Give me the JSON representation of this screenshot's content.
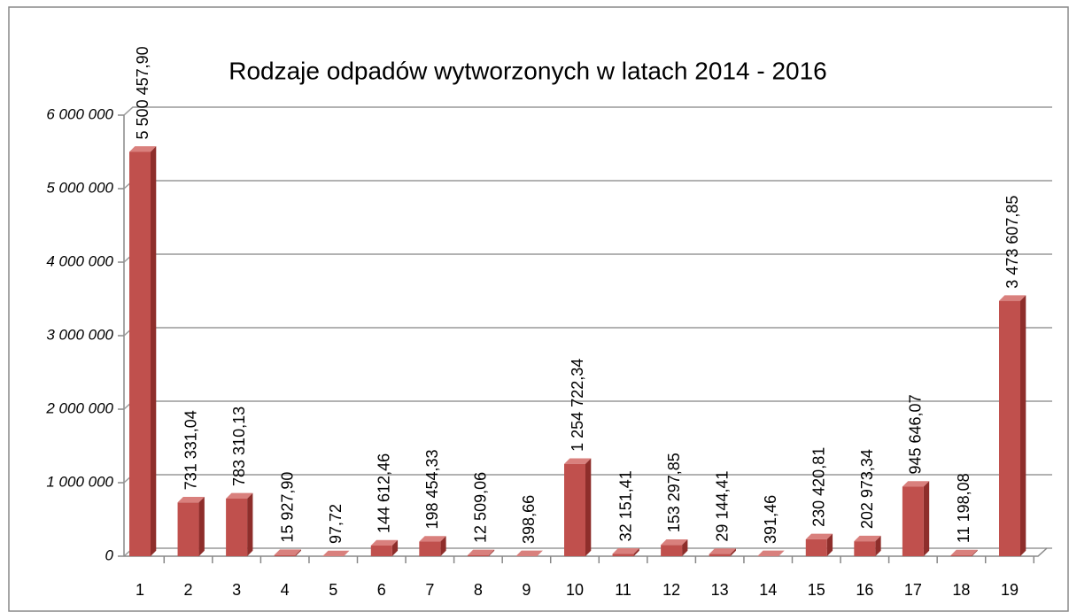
{
  "chart_data": {
    "type": "bar",
    "title": "Rodzaje odpadów wytworzonych w latach  2014 - 2016",
    "categories": [
      "1",
      "2",
      "3",
      "4",
      "5",
      "6",
      "7",
      "8",
      "9",
      "10",
      "11",
      "12",
      "13",
      "14",
      "15",
      "16",
      "17",
      "18",
      "19"
    ],
    "values": [
      5500457.9,
      731331.04,
      783310.13,
      15927.9,
      97.72,
      144612.46,
      198454.33,
      12509.06,
      398.66,
      1254722.34,
      32151.41,
      153297.85,
      29144.41,
      391.46,
      230420.81,
      202973.34,
      945646.07,
      11198.08,
      3473607.85
    ],
    "value_labels": [
      "5 500 457,90",
      "731 331,04",
      "783 310,13",
      "15 927,90",
      "97,72",
      "144 612,46",
      "198 454,33",
      "12 509,06",
      "398,66",
      "1 254 722,34",
      "32 151,41",
      "153 297,85",
      "29 144,41",
      "391,46",
      "230 420,81",
      "202 973,34",
      "945 646,07",
      "11 198,08",
      "3 473 607,85"
    ],
    "color": "#c0504d",
    "ylim": [
      0,
      6000000
    ],
    "yticks": [
      0,
      {
        "value": 1000000,
        "label": "1 000 000"
      },
      {
        "value": 2000000,
        "label": "2 000 000"
      },
      {
        "value": 3000000,
        "label": "3 000 000"
      },
      {
        "value": 4000000,
        "label": "4 000 000"
      },
      {
        "value": 5000000,
        "label": "5 000 000"
      },
      {
        "value": 6000000,
        "label": "6 000 000"
      }
    ],
    "grid": true
  }
}
